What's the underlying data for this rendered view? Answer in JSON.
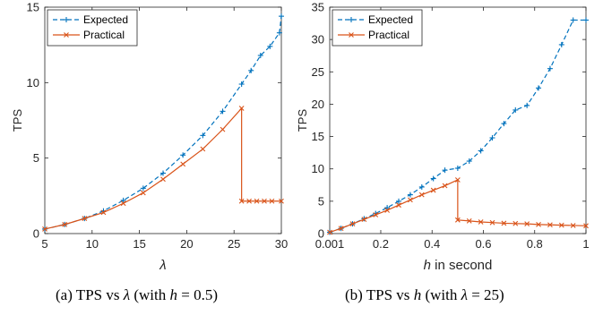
{
  "chart_data": [
    {
      "type": "line",
      "xlabel": "λ",
      "ylabel": "TPS",
      "xlim": [
        5,
        30
      ],
      "ylim": [
        0,
        15
      ],
      "xticks": [
        5,
        10,
        15,
        20,
        25,
        30
      ],
      "yticks": [
        0,
        5,
        10,
        15
      ],
      "legend": "top-left",
      "caption": "(a) TPS vs λ (with h = 0.5)",
      "series": [
        {
          "name": "Expected",
          "color": "#0072bd",
          "style": "dashed",
          "marker": "plus",
          "x": [
            5,
            7.1,
            9.2,
            11.2,
            13.3,
            15.4,
            17.5,
            19.6,
            21.7,
            23.8,
            25.8,
            26.8,
            27.8,
            28.8,
            29.8,
            30
          ],
          "y": [
            0.3,
            0.6,
            1.0,
            1.5,
            2.2,
            3.0,
            4.0,
            5.2,
            6.5,
            8.1,
            9.9,
            10.8,
            11.8,
            12.4,
            13.3,
            14.4
          ]
        },
        {
          "name": "Practical",
          "color": "#d95319",
          "style": "solid",
          "marker": "x",
          "x": [
            5,
            7.1,
            9.2,
            11.2,
            13.3,
            15.4,
            17.5,
            19.6,
            21.7,
            23.8,
            25.8,
            25.8,
            26.6,
            27.4,
            28.2,
            29.0,
            30
          ],
          "y": [
            0.3,
            0.6,
            1.0,
            1.4,
            2.0,
            2.7,
            3.6,
            4.6,
            5.6,
            6.9,
            8.3,
            2.15,
            2.15,
            2.15,
            2.15,
            2.15,
            2.15
          ]
        }
      ]
    },
    {
      "type": "line",
      "xlabel": "h in second",
      "ylabel": "TPS",
      "xlim": [
        0.001,
        1
      ],
      "ylim": [
        0,
        35
      ],
      "xticks": [
        0.001,
        0.2,
        0.4,
        0.6,
        0.8,
        1
      ],
      "xticklabels": [
        "0.001",
        "0.2",
        "0.4",
        "0.6",
        "0.8",
        "1"
      ],
      "yticks": [
        0,
        5,
        10,
        15,
        20,
        25,
        30,
        35
      ],
      "legend": "top-left",
      "caption": "(b) TPS vs h (with λ = 25)",
      "series": [
        {
          "name": "Expected",
          "color": "#0072bd",
          "style": "dashed",
          "marker": "plus",
          "x": [
            0.001,
            0.045,
            0.09,
            0.135,
            0.18,
            0.225,
            0.27,
            0.315,
            0.36,
            0.405,
            0.45,
            0.5,
            0.545,
            0.59,
            0.635,
            0.68,
            0.725,
            0.77,
            0.815,
            0.86,
            0.905,
            0.95,
            1
          ],
          "y": [
            0.2,
            0.8,
            1.5,
            2.3,
            3.1,
            4.0,
            5.0,
            6.0,
            7.2,
            8.5,
            9.8,
            10.1,
            11.2,
            12.8,
            14.8,
            17.0,
            19.1,
            19.8,
            22.5,
            25.5,
            29.2,
            33.0,
            33.0
          ]
        },
        {
          "name": "Practical",
          "color": "#d95319",
          "style": "solid",
          "marker": "x",
          "x": [
            0.001,
            0.045,
            0.09,
            0.135,
            0.18,
            0.225,
            0.27,
            0.315,
            0.36,
            0.405,
            0.45,
            0.5,
            0.5,
            0.545,
            0.59,
            0.635,
            0.68,
            0.725,
            0.77,
            0.815,
            0.86,
            0.905,
            0.95,
            1
          ],
          "y": [
            0.2,
            0.8,
            1.5,
            2.2,
            2.9,
            3.6,
            4.4,
            5.2,
            6.0,
            6.7,
            7.4,
            8.3,
            2.1,
            1.95,
            1.8,
            1.7,
            1.6,
            1.55,
            1.5,
            1.4,
            1.35,
            1.3,
            1.25,
            1.2
          ]
        }
      ]
    }
  ]
}
